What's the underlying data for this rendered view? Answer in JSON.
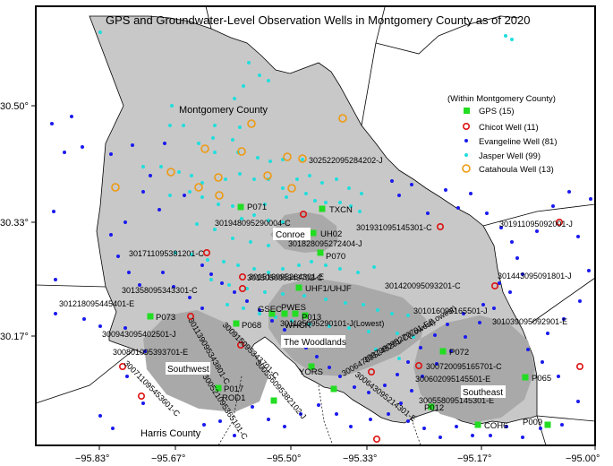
{
  "title": "GPS and Groundwater-Level Observation Wells in Montgomery County as of 2020",
  "axes": {
    "x_ticks": [
      "−95.83°",
      "−95.67°",
      "−95.50°",
      "−95.33°",
      "−95.17°",
      "−95.00°"
    ],
    "y_ticks": [
      "30.50°",
      "30.33°",
      "30.17°"
    ]
  },
  "region_labels": {
    "montgomery": "Montgomery County",
    "harris": "Harris County",
    "conroe": "Conroe",
    "woodlands": "The Woodlands",
    "southwest": "Southwest",
    "southeast": "Southeast"
  },
  "legend": {
    "header": "(Within Montgomery County)",
    "items": [
      {
        "label": "GPS (15)",
        "kind": "gps"
      },
      {
        "label": "Chicot Well (11)",
        "kind": "chicot"
      },
      {
        "label": "Evangeline Well (81)",
        "kind": "evangeline"
      },
      {
        "label": "Jasper Well (99)",
        "kind": "jasper"
      },
      {
        "label": "Catahoula Well (13)",
        "kind": "catahoula"
      }
    ]
  },
  "colors": {
    "county_fill": "#c8c8c8",
    "cluster_fill": "#a9a9a9",
    "gps": "#22dd22",
    "chicot": "#dd1111",
    "evangeline": "#1a1aee",
    "jasper": "#22dddd",
    "catahoula": "#ee9911"
  },
  "gps_labels": [
    "TXCN",
    "P071",
    "UH02",
    "P070",
    "UHF1/UHJF",
    "GSEC",
    "PWES",
    "P013",
    "WHCR",
    "P068",
    "P073",
    "YORS",
    "P017",
    "ROD1",
    "P072",
    "P065",
    "COH6",
    "P009",
    "P012"
  ],
  "well_labels": [
    "302522095284202-J",
    "301948095290004-C",
    "301931095145301-C",
    "301828095272404-J",
    "301711095381201-C",
    "301911095092001-J",
    "301516095264301-E",
    "301505095343702-C",
    "301358095343301-C",
    "301420095093201-C",
    "301443095091801-J",
    "301218095445401-E",
    "301135095290101-J(Lowest)",
    "301016095165501-J",
    "301039095092901-E",
    "300943095402501-J",
    "301139095343801-C",
    "300739095270701-E(Lowest)",
    "300915095343701-C",
    "300647095245201-C(Lowest)",
    "300801095393701-E",
    "300720095165701-C",
    "300602095145501-E",
    "300711095453601-C",
    "300643095214301-E",
    "300521095365101-C",
    "300556095382102-J",
    "300558095145301-E"
  ]
}
